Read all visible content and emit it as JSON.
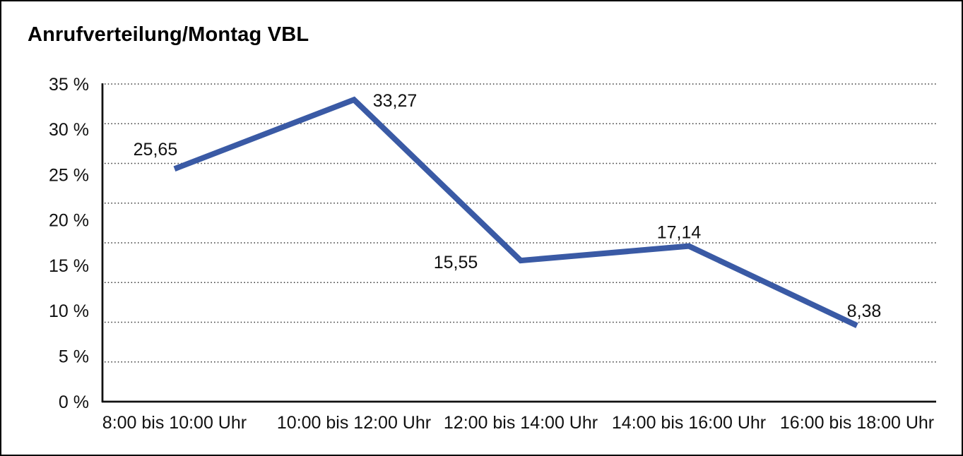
{
  "window": {
    "background_color": "#ffffff",
    "border_color": "#000000"
  },
  "chart_data": {
    "type": "line",
    "title": "Anrufverteilung/Montag VBL",
    "categories": [
      "8:00 bis 10:00 Uhr",
      "10:00 bis 12:00 Uhr",
      "12:00 bis 14:00 Uhr",
      "14:00 bis 16:00 Uhr",
      "16:00 bis 18:00 Uhr"
    ],
    "values": [
      25.65,
      33.27,
      15.55,
      17.14,
      8.38
    ],
    "point_labels": [
      "25,65",
      "33,27",
      "15,55",
      "17,14",
      "8,38"
    ],
    "xlabel": "",
    "ylabel": "",
    "ylim": [
      0,
      35
    ],
    "y_ticks": [
      {
        "value": 0,
        "label": "0 %"
      },
      {
        "value": 5,
        "label": "5 %"
      },
      {
        "value": 10,
        "label": "10 %"
      },
      {
        "value": 15,
        "label": "15 %"
      },
      {
        "value": 20,
        "label": "20 %"
      },
      {
        "value": 25,
        "label": "25 %"
      },
      {
        "value": 30,
        "label": "30 %"
      },
      {
        "value": 35,
        "label": "35 %"
      }
    ],
    "grid": "horizontal-dotted",
    "legend": "none",
    "line_color": "#3A5AA5",
    "text_color": "#111111"
  }
}
